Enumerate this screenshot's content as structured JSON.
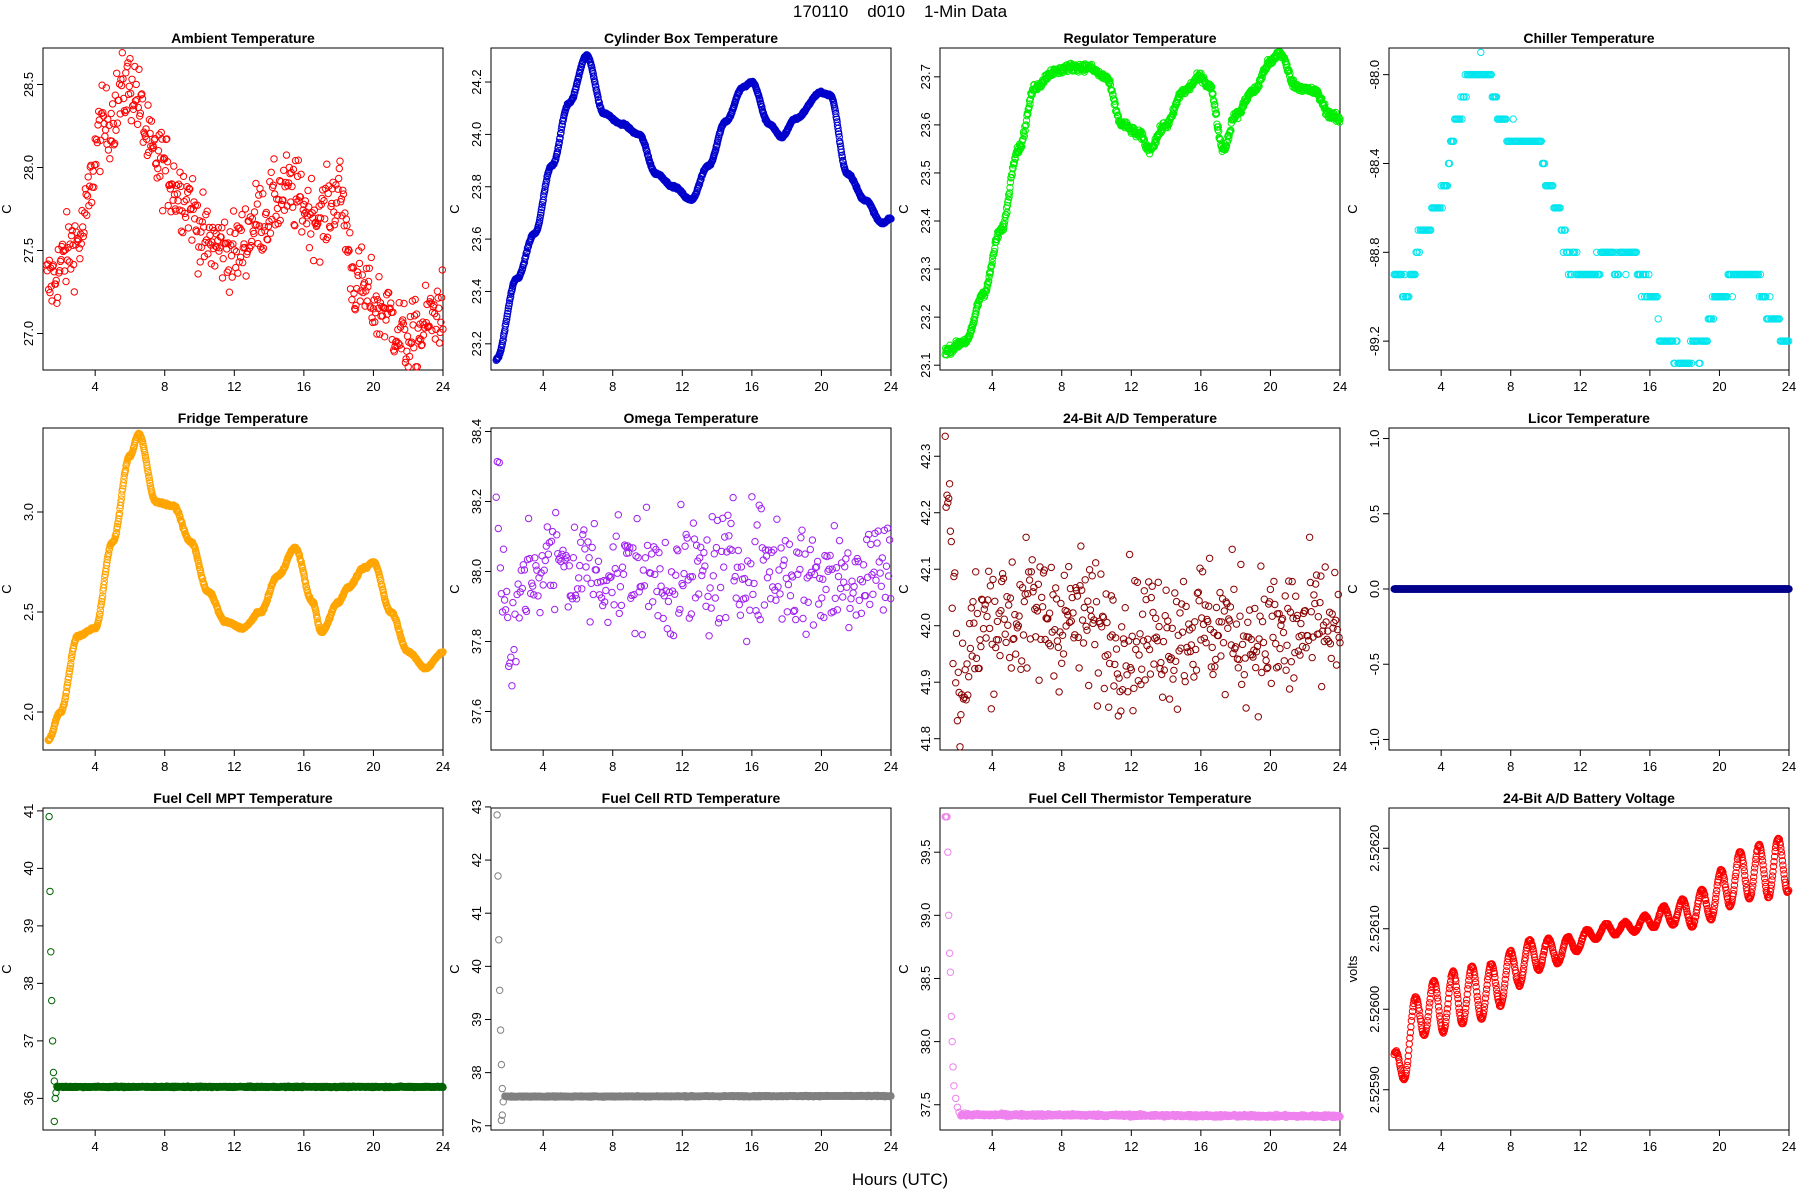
{
  "title": "170110    d010    1-Min Data",
  "xlabel": "Hours (UTC)",
  "chart_data": [
    {
      "type": "scatter",
      "title": "Ambient Temperature",
      "ylabel": "C",
      "color": "#ff0000",
      "xlim": [
        1,
        24
      ],
      "ylim": [
        26.78,
        28.72
      ],
      "yticks": [
        {
          "v": 27.0,
          "label": "27.0"
        },
        {
          "v": 27.5,
          "label": "27.5"
        },
        {
          "v": 28.0,
          "label": "28.0"
        },
        {
          "v": 28.5,
          "label": "28.5"
        }
      ],
      "xticks": [
        4,
        8,
        12,
        16,
        20,
        24
      ],
      "style": "noisy",
      "trend": [
        [
          1.2,
          27.3
        ],
        [
          3,
          27.55
        ],
        [
          4.5,
          28.25
        ],
        [
          6,
          28.5
        ],
        [
          7.5,
          28.05
        ],
        [
          9,
          27.85
        ],
        [
          10.5,
          27.55
        ],
        [
          12,
          27.5
        ],
        [
          13.5,
          27.7
        ],
        [
          15,
          27.85
        ],
        [
          17,
          27.7
        ],
        [
          18,
          27.85
        ],
        [
          19,
          27.3
        ],
        [
          20.5,
          27.15
        ],
        [
          22,
          26.95
        ],
        [
          24,
          27.15
        ]
      ],
      "noise": 0.22,
      "step": 0.04
    },
    {
      "type": "scatter",
      "title": "Cylinder Box Temperature",
      "ylabel": "C",
      "color": "#0000cc",
      "xlim": [
        1,
        24
      ],
      "ylim": [
        23.1,
        24.33
      ],
      "yticks": [
        {
          "v": 23.2,
          "label": "23.2"
        },
        {
          "v": 23.4,
          "label": "23.4"
        },
        {
          "v": 23.6,
          "label": "23.6"
        },
        {
          "v": 23.8,
          "label": "23.8"
        },
        {
          "v": 24.0,
          "label": "24.0"
        },
        {
          "v": 24.2,
          "label": "24.2"
        }
      ],
      "xticks": [
        4,
        8,
        12,
        16,
        20,
        24
      ],
      "style": "smooth",
      "trend": [
        [
          1.3,
          23.14
        ],
        [
          2.5,
          23.45
        ],
        [
          3.5,
          23.62
        ],
        [
          4.5,
          23.88
        ],
        [
          5.5,
          24.12
        ],
        [
          6.5,
          24.3
        ],
        [
          7.5,
          24.08
        ],
        [
          8.5,
          24.04
        ],
        [
          9.5,
          24.0
        ],
        [
          10.5,
          23.85
        ],
        [
          11.5,
          23.8
        ],
        [
          12.5,
          23.75
        ],
        [
          13.5,
          23.88
        ],
        [
          14.5,
          24.05
        ],
        [
          15.5,
          24.18
        ],
        [
          16,
          24.2
        ],
        [
          17,
          24.04
        ],
        [
          17.7,
          23.99
        ],
        [
          18.5,
          24.06
        ],
        [
          20,
          24.16
        ],
        [
          20.5,
          24.15
        ],
        [
          21.5,
          23.85
        ],
        [
          22.5,
          23.75
        ],
        [
          23.5,
          23.66
        ],
        [
          24,
          23.68
        ]
      ],
      "noise": 0.004,
      "step": 0.025
    },
    {
      "type": "scatter",
      "title": "Regulator Temperature",
      "ylabel": "C",
      "color": "#00ee00",
      "xlim": [
        1,
        24
      ],
      "ylim": [
        23.09,
        23.76
      ],
      "yticks": [
        {
          "v": 23.1,
          "label": "23.1"
        },
        {
          "v": 23.2,
          "label": "23.2"
        },
        {
          "v": 23.3,
          "label": "23.3"
        },
        {
          "v": 23.4,
          "label": "23.4"
        },
        {
          "v": 23.5,
          "label": "23.5"
        },
        {
          "v": 23.6,
          "label": "23.6"
        },
        {
          "v": 23.7,
          "label": "23.7"
        }
      ],
      "xticks": [
        4,
        8,
        12,
        16,
        20,
        24
      ],
      "style": "smooth",
      "trend": [
        [
          1.3,
          23.13
        ],
        [
          2.5,
          23.15
        ],
        [
          3.5,
          23.25
        ],
        [
          4.5,
          23.38
        ],
        [
          5.5,
          23.55
        ],
        [
          6.5,
          23.68
        ],
        [
          7.5,
          23.71
        ],
        [
          8.5,
          23.72
        ],
        [
          9.5,
          23.72
        ],
        [
          10.5,
          23.7
        ],
        [
          11.5,
          23.6
        ],
        [
          12.5,
          23.58
        ],
        [
          13,
          23.55
        ],
        [
          14,
          23.6
        ],
        [
          15,
          23.67
        ],
        [
          16,
          23.7
        ],
        [
          16.5,
          23.68
        ],
        [
          17.3,
          23.55
        ],
        [
          18,
          23.62
        ],
        [
          19,
          23.67
        ],
        [
          20,
          23.73
        ],
        [
          20.5,
          23.75
        ],
        [
          21.5,
          23.68
        ],
        [
          22.5,
          23.67
        ],
        [
          23.5,
          23.62
        ],
        [
          24,
          23.61
        ]
      ],
      "noise": 0.008,
      "step": 0.025
    },
    {
      "type": "scatter",
      "title": "Chiller Temperature",
      "ylabel": "C",
      "color": "#00e5ee",
      "xlim": [
        1,
        24
      ],
      "ylim": [
        -89.33,
        -87.88
      ],
      "yticks": [
        {
          "v": -88.0,
          "label": "-88.0"
        },
        {
          "v": -88.4,
          "label": "-88.4"
        },
        {
          "v": -88.8,
          "label": "-88.8"
        },
        {
          "v": -89.2,
          "label": "-89.2"
        }
      ],
      "xticks": [
        4,
        8,
        12,
        16,
        20,
        24
      ],
      "style": "quantized",
      "quant": 0.1,
      "trend": [
        [
          1.3,
          -88.9
        ],
        [
          2,
          -88.95
        ],
        [
          3,
          -88.7
        ],
        [
          4,
          -88.55
        ],
        [
          5,
          -88.2
        ],
        [
          5.6,
          -88.0
        ],
        [
          6.5,
          -87.95
        ],
        [
          7.5,
          -88.2
        ],
        [
          8.5,
          -88.3
        ],
        [
          9.5,
          -88.3
        ],
        [
          10.5,
          -88.55
        ],
        [
          11.5,
          -88.85
        ],
        [
          12.5,
          -88.9
        ],
        [
          13.5,
          -88.82
        ],
        [
          15,
          -88.82
        ],
        [
          16,
          -89.0
        ],
        [
          17,
          -89.2
        ],
        [
          18,
          -89.28
        ],
        [
          19,
          -89.22
        ],
        [
          20,
          -89.0
        ],
        [
          21,
          -88.9
        ],
        [
          22,
          -88.88
        ],
        [
          23,
          -89.1
        ],
        [
          24,
          -89.2
        ]
      ],
      "noise": 0.05,
      "step": 0.06
    },
    {
      "type": "scatter",
      "title": "Fridge Temperature",
      "ylabel": "C",
      "color": "#ffa500",
      "xlim": [
        1,
        24
      ],
      "ylim": [
        1.81,
        3.42
      ],
      "yticks": [
        {
          "v": 2.0,
          "label": "2.0"
        },
        {
          "v": 2.5,
          "label": "2.5"
        },
        {
          "v": 3.0,
          "label": "3.0"
        }
      ],
      "xticks": [
        4,
        8,
        12,
        16,
        20,
        24
      ],
      "style": "smooth",
      "trend": [
        [
          1.3,
          1.86
        ],
        [
          2,
          2.0
        ],
        [
          3,
          2.38
        ],
        [
          4,
          2.42
        ],
        [
          5,
          2.85
        ],
        [
          6,
          3.28
        ],
        [
          6.5,
          3.39
        ],
        [
          7.5,
          3.05
        ],
        [
          8.5,
          3.03
        ],
        [
          9.5,
          2.85
        ],
        [
          10.5,
          2.6
        ],
        [
          11.5,
          2.45
        ],
        [
          12.5,
          2.42
        ],
        [
          13.5,
          2.5
        ],
        [
          14.5,
          2.68
        ],
        [
          15.5,
          2.82
        ],
        [
          16.5,
          2.55
        ],
        [
          17,
          2.4
        ],
        [
          18,
          2.55
        ],
        [
          18.5,
          2.62
        ],
        [
          19.5,
          2.72
        ],
        [
          20,
          2.75
        ],
        [
          21,
          2.5
        ],
        [
          22,
          2.3
        ],
        [
          23,
          2.22
        ],
        [
          24,
          2.3
        ]
      ],
      "noise": 0.006,
      "step": 0.025
    },
    {
      "type": "scatter",
      "title": "Omega Temperature",
      "ylabel": "C",
      "color": "#a020f0",
      "xlim": [
        1,
        24
      ],
      "ylim": [
        37.49,
        38.41
      ],
      "yticks": [
        {
          "v": 37.6,
          "label": "37.6"
        },
        {
          "v": 37.8,
          "label": "37.8"
        },
        {
          "v": 38.0,
          "label": "38.0"
        },
        {
          "v": 38.2,
          "label": "38.2"
        },
        {
          "v": 38.4,
          "label": "38.4"
        }
      ],
      "xticks": [
        4,
        8,
        12,
        16,
        20,
        24
      ],
      "style": "noisy",
      "trend": [
        [
          1.3,
          38.15
        ],
        [
          2.2,
          37.75
        ],
        [
          3,
          38.0
        ],
        [
          4,
          38.02
        ],
        [
          8,
          38.0
        ],
        [
          12,
          37.98
        ],
        [
          16,
          38.02
        ],
        [
          20,
          37.98
        ],
        [
          24,
          38.02
        ]
      ],
      "noise": 0.17,
      "step": 0.06
    },
    {
      "type": "scatter",
      "title": "24-Bit A/D Temperature",
      "ylabel": "C",
      "color": "#8b0000",
      "xlim": [
        1,
        24
      ],
      "ylim": [
        41.78,
        42.35
      ],
      "yticks": [
        {
          "v": 41.8,
          "label": "41.8"
        },
        {
          "v": 41.9,
          "label": "41.9"
        },
        {
          "v": 42.0,
          "label": "42.0"
        },
        {
          "v": 42.1,
          "label": "42.1"
        },
        {
          "v": 42.2,
          "label": "42.2"
        },
        {
          "v": 42.3,
          "label": "42.3"
        }
      ],
      "xticks": [
        4,
        8,
        12,
        16,
        20,
        24
      ],
      "style": "noisy",
      "trend": [
        [
          1.3,
          42.25
        ],
        [
          2.2,
          41.88
        ],
        [
          3,
          41.98
        ],
        [
          4,
          42.02
        ],
        [
          8,
          42.02
        ],
        [
          12,
          41.98
        ],
        [
          16,
          42.0
        ],
        [
          20,
          41.98
        ],
        [
          24,
          42.0
        ]
      ],
      "noise": 0.12,
      "step": 0.05
    },
    {
      "type": "line",
      "title": "Licor Temperature",
      "ylabel": "C",
      "color": "#00008b",
      "xlim": [
        1,
        24
      ],
      "ylim": [
        -1.07,
        1.07
      ],
      "yticks": [
        {
          "v": -1.0,
          "label": "-1.0"
        },
        {
          "v": -0.5,
          "label": "-0.5"
        },
        {
          "v": 0.0,
          "label": "0.0"
        },
        {
          "v": 0.5,
          "label": "0.5"
        },
        {
          "v": 1.0,
          "label": "1.0"
        }
      ],
      "xticks": [
        4,
        8,
        12,
        16,
        20,
        24
      ],
      "style": "flat",
      "trend": [
        [
          1.3,
          0.0
        ],
        [
          24,
          0.0
        ]
      ],
      "noise": 0,
      "step": 0.025
    },
    {
      "type": "scatter",
      "title": "Fuel Cell MPT Temperature",
      "ylabel": "C",
      "color": "#006400",
      "xlim": [
        1,
        24
      ],
      "ylim": [
        35.45,
        41.05
      ],
      "yticks": [
        {
          "v": 36,
          "label": "36"
        },
        {
          "v": 37,
          "label": "37"
        },
        {
          "v": 38,
          "label": "38"
        },
        {
          "v": 39,
          "label": "39"
        },
        {
          "v": 40,
          "label": "40"
        },
        {
          "v": 41,
          "label": "41"
        }
      ],
      "xticks": [
        4,
        8,
        12,
        16,
        20,
        24
      ],
      "style": "decay",
      "early": [
        [
          1.35,
          40.9
        ],
        [
          1.4,
          39.6
        ],
        [
          1.45,
          38.55
        ],
        [
          1.5,
          37.7
        ],
        [
          1.55,
          37.0
        ],
        [
          1.6,
          36.45
        ],
        [
          1.65,
          36.3
        ],
        [
          1.7,
          36.0
        ],
        [
          1.65,
          35.6
        ],
        [
          1.75,
          36.1
        ]
      ],
      "trend": [
        [
          1.8,
          36.2
        ],
        [
          24,
          36.2
        ]
      ],
      "noise": 0.01,
      "step": 0.025
    },
    {
      "type": "scatter",
      "title": "Fuel Cell RTD Temperature",
      "ylabel": "C",
      "color": "#808080",
      "xlim": [
        1,
        24
      ],
      "ylim": [
        36.92,
        42.98
      ],
      "yticks": [
        {
          "v": 37,
          "label": "37"
        },
        {
          "v": 38,
          "label": "38"
        },
        {
          "v": 39,
          "label": "39"
        },
        {
          "v": 40,
          "label": "40"
        },
        {
          "v": 41,
          "label": "41"
        },
        {
          "v": 42,
          "label": "42"
        },
        {
          "v": 43,
          "label": "43"
        }
      ],
      "xticks": [
        4,
        8,
        12,
        16,
        20,
        24
      ],
      "style": "decay",
      "early": [
        [
          1.35,
          42.85
        ],
        [
          1.4,
          41.7
        ],
        [
          1.45,
          40.5
        ],
        [
          1.5,
          39.55
        ],
        [
          1.55,
          38.8
        ],
        [
          1.6,
          38.15
        ],
        [
          1.65,
          37.7
        ],
        [
          1.6,
          37.1
        ],
        [
          1.65,
          37.2
        ],
        [
          1.7,
          37.45
        ]
      ],
      "trend": [
        [
          1.8,
          37.55
        ],
        [
          24,
          37.56
        ]
      ],
      "noise": 0.01,
      "step": 0.025
    },
    {
      "type": "scatter",
      "title": "Fuel Cell Thermistor Temperature",
      "ylabel": "C",
      "color": "#ee82ee",
      "xlim": [
        1,
        24
      ],
      "ylim": [
        37.3,
        39.85
      ],
      "yticks": [
        {
          "v": 37.5,
          "label": "37.5"
        },
        {
          "v": 38.0,
          "label": "38.0"
        },
        {
          "v": 38.5,
          "label": "38.5"
        },
        {
          "v": 39.0,
          "label": "39.0"
        },
        {
          "v": 39.5,
          "label": "39.5"
        }
      ],
      "xticks": [
        4,
        8,
        12,
        16,
        20,
        24
      ],
      "style": "decay",
      "early": [
        [
          1.3,
          39.78
        ],
        [
          1.35,
          39.78
        ],
        [
          1.4,
          39.78
        ],
        [
          1.45,
          39.5
        ],
        [
          1.5,
          39.0
        ],
        [
          1.55,
          38.7
        ],
        [
          1.6,
          38.55
        ],
        [
          1.65,
          38.2
        ],
        [
          1.7,
          38.0
        ],
        [
          1.75,
          37.8
        ],
        [
          1.8,
          37.65
        ],
        [
          1.9,
          37.55
        ],
        [
          2.0,
          37.48
        ],
        [
          2.1,
          37.44
        ]
      ],
      "trend": [
        [
          2.2,
          37.42
        ],
        [
          24,
          37.41
        ]
      ],
      "noise": 0.01,
      "step": 0.025
    },
    {
      "type": "scatter",
      "title": "24-Bit A/D Battery Voltage",
      "ylabel": "volts",
      "color": "#ff0000",
      "xlim": [
        1,
        24
      ],
      "ylim": [
        2.52585,
        2.52625
      ],
      "yticks": [
        {
          "v": 2.5259,
          "label": "2.52590"
        },
        {
          "v": 2.526,
          "label": "2.52600"
        },
        {
          "v": 2.5261,
          "label": "2.52610"
        },
        {
          "v": 2.5262,
          "label": "2.52620"
        }
      ],
      "xticks": [
        4,
        8,
        12,
        16,
        20,
        24
      ],
      "style": "oscillating",
      "trend": [
        [
          1.3,
          2.52592
        ],
        [
          3,
          2.526
        ],
        [
          6,
          2.52602
        ],
        [
          10,
          2.52607
        ],
        [
          14,
          2.5261
        ],
        [
          18,
          2.52612
        ],
        [
          22,
          2.52617
        ],
        [
          24,
          2.52618
        ]
      ],
      "amp": 3.5e-05,
      "period": 1.1,
      "noise": 1e-06,
      "step": 0.03
    }
  ]
}
